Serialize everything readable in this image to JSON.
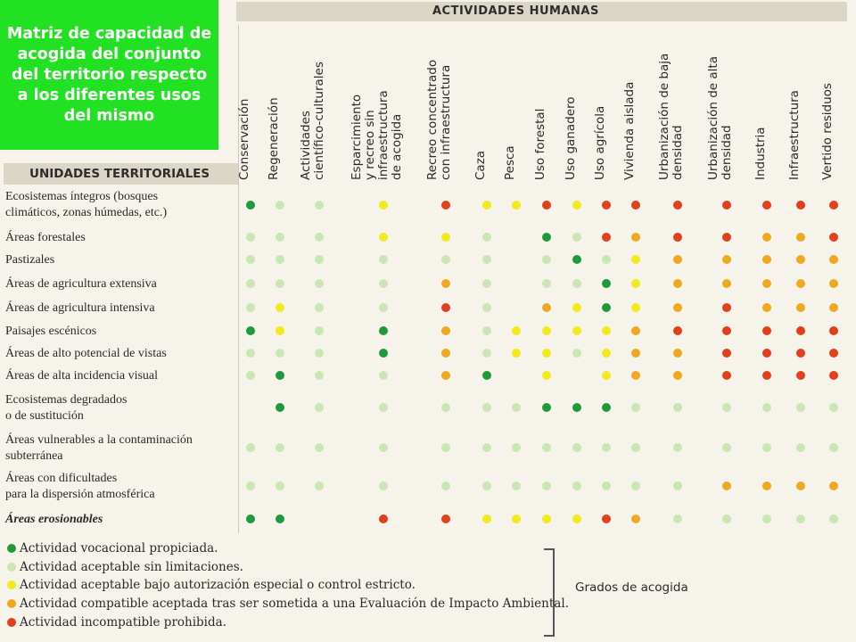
{
  "title": "Matriz de capacidad de acogida del conjunto del territorio respecto a los diferentes usos del mismo",
  "header_title": "ACTIVIDADES HUMANAS",
  "units_title": "UNIDADES TERRITORIALES",
  "colors": {
    "A": "#1f9a3a",
    "B": "#c9e6b4",
    "C": "#f2ea1a",
    "D": "#f0a820",
    "E": "#e0401c"
  },
  "columns": [
    "Conservación",
    "Regeneración",
    "Actividades\ncientífico-culturales",
    "Esparcimiento\ny recreo sin\ninfraestructura\nde acogida",
    "Recreo concentrado\ncon infraestructura",
    "Caza",
    "Pesca",
    "Uso forestal",
    "Uso ganadero",
    "Uso agrícola",
    "Vivienda aislada",
    "Urbanización de baja\ndensidad",
    "Urbanización de alta\ndensidad",
    "Industria",
    "Infraestructura",
    "Vertido residuos"
  ],
  "rows": [
    {
      "label": "Ecosistemas íntegros (bosques\nclimáticos, zonas húmedas, etc.)",
      "italic": false,
      "values": [
        "A",
        "B",
        "B",
        "C",
        "E",
        "C",
        "C",
        "E",
        "C",
        "E",
        "E",
        "E",
        "E",
        "E",
        "E",
        "E"
      ]
    },
    {
      "label": "Áreas forestales",
      "italic": false,
      "values": [
        "B",
        "B",
        "B",
        "C",
        "C",
        "B",
        "",
        "A",
        "B",
        "E",
        "D",
        "E",
        "E",
        "D",
        "D",
        "E"
      ]
    },
    {
      "label": "Pastizales",
      "italic": false,
      "values": [
        "B",
        "B",
        "B",
        "B",
        "B",
        "B",
        "",
        "B",
        "A",
        "B",
        "C",
        "D",
        "D",
        "D",
        "D",
        "D"
      ]
    },
    {
      "label": "Áreas de agricultura extensiva",
      "italic": false,
      "values": [
        "B",
        "B",
        "B",
        "B",
        "D",
        "B",
        "",
        "B",
        "B",
        "A",
        "C",
        "D",
        "D",
        "D",
        "D",
        "D"
      ]
    },
    {
      "label": "Áreas de agricultura intensiva",
      "italic": false,
      "values": [
        "B",
        "C",
        "B",
        "B",
        "E",
        "B",
        "",
        "D",
        "C",
        "A",
        "C",
        "D",
        "E",
        "D",
        "D",
        "D"
      ]
    },
    {
      "label": "Paisajes escénicos",
      "italic": false,
      "values": [
        "A",
        "C",
        "B",
        "A",
        "D",
        "B",
        "C",
        "C",
        "C",
        "C",
        "D",
        "E",
        "E",
        "E",
        "E",
        "E"
      ]
    },
    {
      "label": "Áreas de alto potencial de vistas",
      "italic": false,
      "values": [
        "B",
        "B",
        "B",
        "A",
        "D",
        "B",
        "C",
        "C",
        "B",
        "C",
        "D",
        "D",
        "E",
        "E",
        "E",
        "E"
      ]
    },
    {
      "label": "Áreas de alta incidencia visual",
      "italic": false,
      "values": [
        "B",
        "A",
        "B",
        "B",
        "D",
        "A",
        "",
        "C",
        "",
        "C",
        "D",
        "D",
        "E",
        "E",
        "E",
        "E"
      ]
    },
    {
      "label": "Ecosistemas degradados\no de sustitución",
      "italic": false,
      "values": [
        "",
        "A",
        "B",
        "B",
        "B",
        "B",
        "B",
        "A",
        "A",
        "A",
        "B",
        "B",
        "B",
        "B",
        "B",
        "B"
      ]
    },
    {
      "label": "Áreas vulnerables a la contaminación\nsubterránea",
      "italic": false,
      "values": [
        "B",
        "B",
        "B",
        "B",
        "B",
        "B",
        "B",
        "B",
        "B",
        "B",
        "B",
        "B",
        "B",
        "B",
        "B",
        "B"
      ]
    },
    {
      "label": "Áreas con dificultades\npara la dispersión atmosférica",
      "italic": false,
      "values": [
        "B",
        "B",
        "B",
        "B",
        "B",
        "B",
        "B",
        "B",
        "B",
        "B",
        "B",
        "B",
        "D",
        "D",
        "D",
        "D"
      ]
    },
    {
      "label": "Áreas erosionables",
      "italic": true,
      "values": [
        "A",
        "A",
        "",
        "E",
        "E",
        "C",
        "C",
        "C",
        "C",
        "E",
        "D",
        "B",
        "B",
        "B",
        "B",
        "B"
      ]
    }
  ],
  "legend": [
    {
      "grade": "A",
      "text": "Actividad vocacional propiciada."
    },
    {
      "grade": "B",
      "text": "Actividad aceptable sin limitaciones."
    },
    {
      "grade": "C",
      "text": "Actividad aceptable bajo autorización especial o control estricto."
    },
    {
      "grade": "D",
      "text": "Actividad compatible aceptada tras ser sometida a una Evaluación de Impacto Ambiental."
    },
    {
      "grade": "E",
      "text": "Actividad incompatible prohibida."
    }
  ],
  "legend_caption": "Grados de acogida"
}
